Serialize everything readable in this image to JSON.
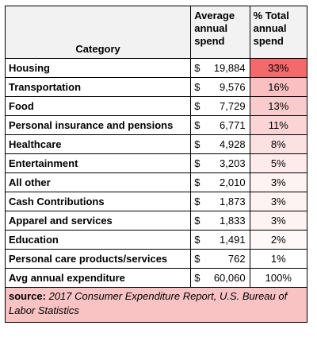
{
  "header": {
    "category": "Category",
    "average": "Average annual spend",
    "percent": "% Total annual spend"
  },
  "rows": [
    {
      "category": "Housing",
      "currency": "$",
      "amount": "19,884",
      "percent": "33%",
      "color": "#f4696b"
    },
    {
      "category": "Transportation",
      "currency": "$",
      "amount": "9,576",
      "percent": "16%",
      "color": "#f9bfc1"
    },
    {
      "category": "Food",
      "currency": "$",
      "amount": "7,729",
      "percent": "13%",
      "color": "#facbcd"
    },
    {
      "category": "Personal insurance and pensions",
      "currency": "$",
      "amount": "6,771",
      "percent": "11%",
      "color": "#fbd4d5"
    },
    {
      "category": "Healthcare",
      "currency": "$",
      "amount": "4,928",
      "percent": "8%",
      "color": "#fce1e2"
    },
    {
      "category": "Entertainment",
      "currency": "$",
      "amount": "3,203",
      "percent": "5%",
      "color": "#fdebec"
    },
    {
      "category": "All other",
      "currency": "$",
      "amount": "2,010",
      "percent": "3%",
      "color": "#fef3f3"
    },
    {
      "category": "Cash Contributions",
      "currency": "$",
      "amount": "1,873",
      "percent": "3%",
      "color": "#fef3f3"
    },
    {
      "category": "Apparel and services",
      "currency": "$",
      "amount": "1,833",
      "percent": "3%",
      "color": "#fef3f3"
    },
    {
      "category": "Education",
      "currency": "$",
      "amount": "1,491",
      "percent": "2%",
      "color": "#fef8f8"
    },
    {
      "category": "Personal care products/services",
      "currency": "$",
      "amount": "762",
      "percent": "1%",
      "color": "#ffffff"
    },
    {
      "category": "Avg annual expenditure",
      "currency": "$",
      "amount": "60,060",
      "percent": "100%",
      "color": "#ffffff"
    }
  ],
  "source": {
    "label": "source:",
    "text": "2017 Consumer Expenditure Report, U.S. Bureau of Labor Statistics"
  }
}
